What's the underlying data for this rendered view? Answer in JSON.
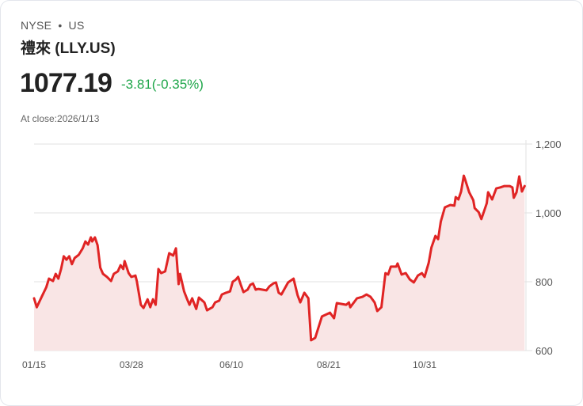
{
  "header": {
    "exchange": "NYSE",
    "separator": "•",
    "market": "US",
    "name": "禮來 (LLY.US)",
    "price": "1077.19",
    "change": "-3.81(-0.35%)",
    "close_label": "At close:2026/1/13"
  },
  "colors": {
    "line": "#e02424",
    "fill": "#f9e5e5",
    "change": "#1fa64a",
    "grid": "#e2e2e2"
  },
  "chart_data": {
    "type": "area",
    "title": "",
    "xlabel": "",
    "ylabel": "",
    "x_unit": "days since 01/15",
    "xlim": [
      0,
      364
    ],
    "ylim": [
      600,
      1200
    ],
    "yticks": [
      600,
      800,
      1000,
      1200
    ],
    "ytick_labels": [
      "600",
      "800",
      "1,000",
      "1,200"
    ],
    "xticks": [
      0,
      72,
      146,
      218,
      289
    ],
    "xtick_labels": [
      "01/15",
      "03/28",
      "06/10",
      "08/21",
      "10/31"
    ],
    "grid": true,
    "x": [
      0,
      2,
      6,
      9,
      11,
      14,
      16,
      18,
      20,
      22,
      24,
      26,
      28,
      30,
      33,
      36,
      38,
      40,
      42,
      43,
      45,
      47,
      49,
      51,
      54,
      57,
      59,
      62,
      64,
      66,
      67,
      70,
      72,
      75,
      76,
      79,
      81,
      84,
      86,
      88,
      90,
      92,
      94,
      97,
      100,
      103,
      105,
      107,
      108,
      111,
      113,
      115,
      117,
      120,
      122,
      126,
      128,
      132,
      134,
      137,
      139,
      142,
      145,
      147,
      149,
      151,
      153,
      155,
      158,
      160,
      162,
      164,
      166,
      169,
      172,
      174,
      177,
      179,
      181,
      183,
      188,
      192,
      195,
      197,
      200,
      203,
      205,
      208,
      213,
      219,
      222,
      224,
      231,
      233,
      234,
      239,
      243,
      246,
      249,
      252,
      254,
      257,
      260,
      262,
      264,
      268,
      269,
      272,
      275,
      278,
      281,
      284,
      287,
      289,
      292,
      294,
      297,
      299,
      301,
      304,
      308,
      311,
      312,
      314,
      316,
      318,
      319,
      322,
      325,
      326,
      329,
      331,
      333,
      335,
      336,
      339,
      342,
      345,
      348,
      352,
      354,
      355,
      357,
      359,
      361,
      363
    ],
    "values": [
      752,
      726,
      759,
      784,
      809,
      802,
      823,
      809,
      837,
      874,
      864,
      874,
      851,
      869,
      878,
      897,
      917,
      908,
      929,
      917,
      929,
      906,
      841,
      823,
      814,
      802,
      823,
      830,
      848,
      837,
      860,
      825,
      814,
      818,
      802,
      733,
      724,
      749,
      726,
      749,
      733,
      837,
      825,
      830,
      883,
      876,
      897,
      793,
      823,
      772,
      752,
      733,
      752,
      721,
      754,
      740,
      717,
      726,
      740,
      745,
      763,
      768,
      772,
      800,
      805,
      814,
      791,
      770,
      777,
      791,
      795,
      777,
      779,
      777,
      775,
      786,
      795,
      798,
      768,
      763,
      798,
      809,
      761,
      740,
      768,
      752,
      630,
      637,
      699,
      710,
      694,
      738,
      733,
      740,
      726,
      752,
      756,
      763,
      756,
      740,
      715,
      726,
      825,
      821,
      844,
      844,
      853,
      821,
      825,
      807,
      798,
      818,
      825,
      814,
      855,
      899,
      933,
      924,
      975,
      1016,
      1023,
      1021,
      1046,
      1039,
      1062,
      1108,
      1097,
      1060,
      1037,
      1014,
      1002,
      982,
      1005,
      1028,
      1060,
      1039,
      1071,
      1074,
      1078,
      1078,
      1074,
      1044,
      1060,
      1106,
      1062,
      1078
    ]
  }
}
